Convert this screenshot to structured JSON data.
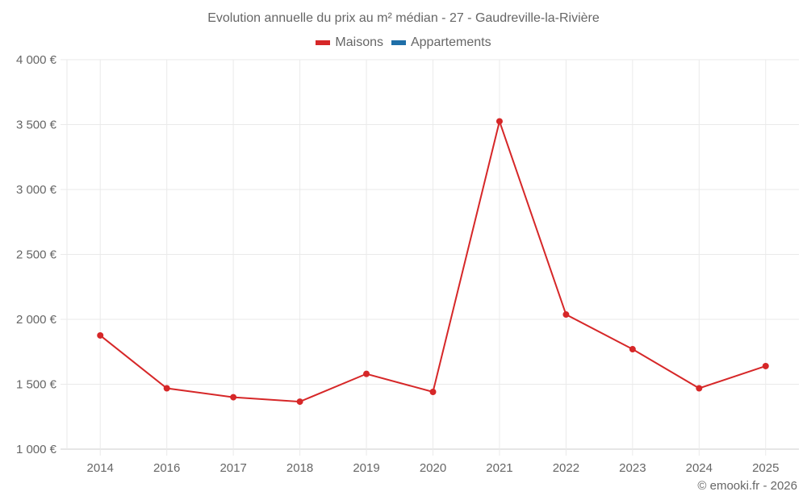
{
  "header": {
    "title": "Evolution annuelle du prix au m² médian - 27 - Gaudreville-la-Rivière"
  },
  "legend": [
    {
      "label": "Maisons",
      "color": "#d62728"
    },
    {
      "label": "Appartements",
      "color": "#1f6fa8"
    }
  ],
  "footer": {
    "credit": "© emooki.fr - 2026"
  },
  "chart_data": {
    "type": "line",
    "title": "Evolution annuelle du prix au m² médian - 27 - Gaudreville-la-Rivière",
    "xlabel": "",
    "ylabel": "",
    "categories": [
      "2014",
      "2016",
      "2017",
      "2018",
      "2019",
      "2020",
      "2021",
      "2022",
      "2023",
      "2024",
      "2025"
    ],
    "series": [
      {
        "name": "Maisons",
        "color": "#d62728",
        "values": [
          1876,
          1469,
          1400,
          1366,
          1580,
          1441,
          3525,
          2037,
          1770,
          1469,
          1640
        ]
      },
      {
        "name": "Appartements",
        "color": "#1f6fa8",
        "values": []
      }
    ],
    "yticks": [
      "1 000 €",
      "1 500 €",
      "2 000 €",
      "2 500 €",
      "3 000 €",
      "3 500 €",
      "4 000 €"
    ],
    "ylim": [
      1000,
      4000
    ],
    "grid": true,
    "legend_position": "top"
  }
}
